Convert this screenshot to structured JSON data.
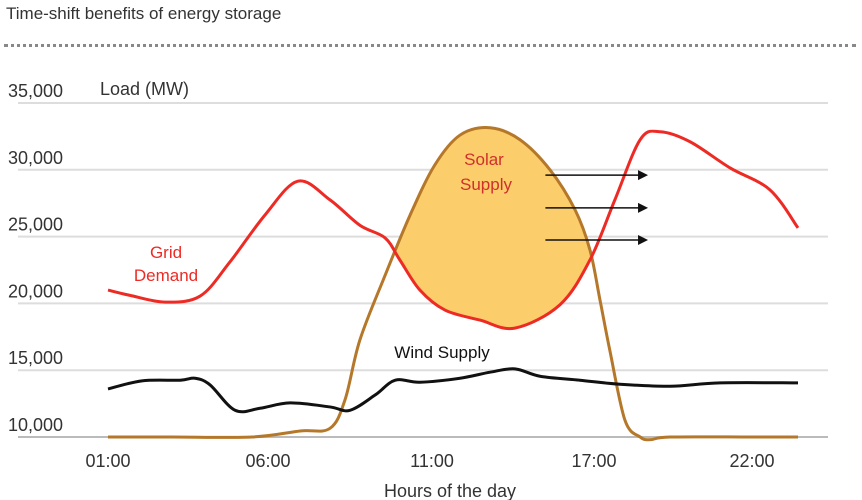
{
  "title": "Time-shift benefits of energy storage",
  "chart_data": {
    "type": "line",
    "title": "Time-shift benefits of energy storage",
    "ylabel": "Load (MW)",
    "xlabel": "Hours of the day",
    "ylim": [
      10000,
      35000
    ],
    "yticks": [
      10000,
      15000,
      20000,
      25000,
      30000,
      35000
    ],
    "ytick_labels": [
      "10,000",
      "15,000",
      "20,000",
      "25,000",
      "30,000",
      "35,000"
    ],
    "xticks": [
      1,
      6,
      11,
      17,
      22
    ],
    "xtick_labels": [
      "01:00",
      "06:00",
      "11:00",
      "17:00",
      "22:00"
    ],
    "xlim": [
      1,
      24
    ],
    "grid": true,
    "series": [
      {
        "name": "Grid Demand",
        "label": "Grid Demand",
        "color": "#ee2a24",
        "x": [
          1.0,
          1.69,
          2.78,
          3.88,
          4.81,
          5.9,
          6.91,
          7.89,
          8.8,
          9.57,
          10.02,
          10.63,
          11.48,
          12.78,
          14.07,
          15.74,
          16.85,
          17.66,
          18.46,
          19.09,
          20.04,
          21.3,
          22.78,
          24
        ],
        "y": [
          21000,
          20600,
          20100,
          20550,
          23100,
          26600,
          29150,
          27750,
          25850,
          24900,
          23250,
          21000,
          19500,
          18750,
          18150,
          19900,
          23250,
          27750,
          32250,
          32850,
          32100,
          30150,
          28500,
          25650
        ]
      },
      {
        "name": "Solar Supply",
        "label": "Solar Supply",
        "color": "#b5782a",
        "fill": "#fbcd6b",
        "x": [
          1,
          3,
          5.5,
          6.98,
          7.89,
          8.35,
          8.8,
          9.57,
          10.33,
          11.1,
          12.04,
          13.15,
          14.26,
          15.37,
          16.3,
          16.85,
          17.19,
          17.5,
          17.98,
          18.46,
          18.78,
          19.41,
          22,
          24
        ],
        "y": [
          10000,
          10000,
          10000,
          10450,
          10650,
          12800,
          17250,
          22100,
          26600,
          30350,
          32600,
          33150,
          32250,
          30000,
          27000,
          24000,
          20250,
          16500,
          11250,
          10000,
          9800,
          10000,
          10000,
          10000
        ]
      },
      {
        "name": "Wind Supply",
        "label": "Wind Supply",
        "color": "#111111",
        "x": [
          1,
          2.06,
          3.25,
          3.72,
          4.19,
          4.97,
          5.75,
          6.67,
          7.89,
          8.5,
          9.27,
          9.88,
          10.63,
          12.04,
          13.15,
          14.07,
          15,
          16.48,
          17.82,
          19.41,
          20.99,
          24
        ],
        "y": [
          13600,
          14200,
          14250,
          14400,
          13900,
          12000,
          12150,
          12550,
          12250,
          12000,
          13150,
          14250,
          14100,
          14400,
          14850,
          15100,
          14550,
          14250,
          13950,
          13800,
          14050,
          14050
        ]
      }
    ],
    "annotations": {
      "arrows": [
        {
          "from": [
            15.2,
            29600
          ],
          "to": [
            18.71,
            29600
          ]
        },
        {
          "from": [
            15.2,
            27150
          ],
          "to": [
            18.71,
            27150
          ]
        },
        {
          "from": [
            15.2,
            24750
          ],
          "to": [
            18.71,
            24750
          ]
        }
      ]
    }
  }
}
